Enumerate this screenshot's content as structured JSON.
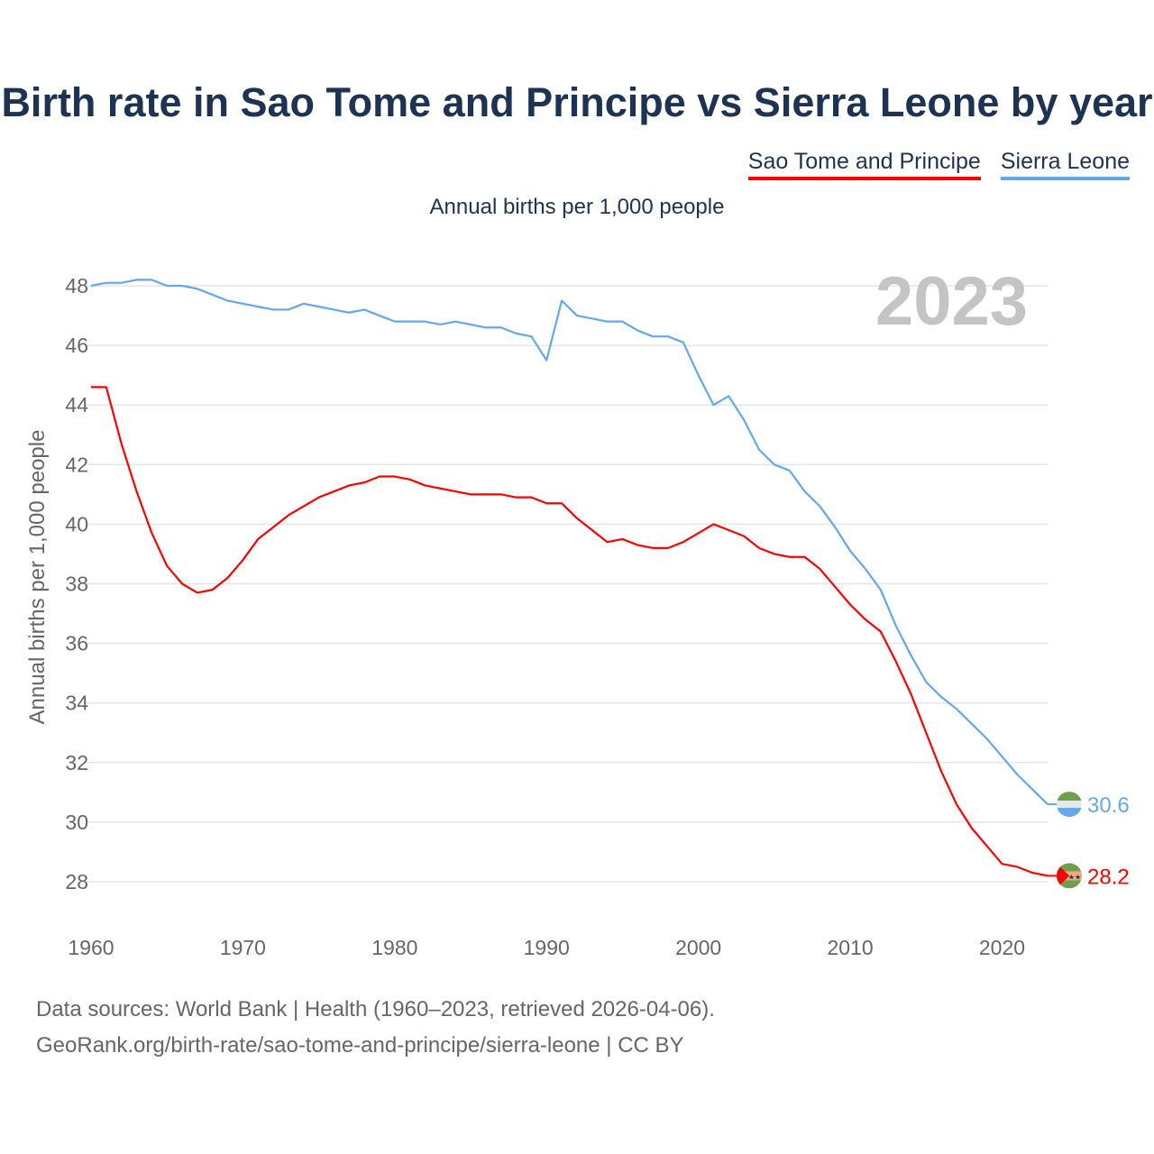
{
  "chart_data": {
    "type": "line",
    "title": "Birth rate in Sao Tome and Principe vs Sierra Leone by year",
    "subtitle": "Annual births per 1,000 people",
    "ylabel": "Annual births per 1,000 people",
    "xlabel": "",
    "year_label": "2023",
    "xlim": [
      1960,
      2023
    ],
    "ylim": [
      27,
      49
    ],
    "x_ticks": [
      1960,
      1970,
      1980,
      1990,
      2000,
      2010,
      2020
    ],
    "y_ticks": [
      28,
      30,
      32,
      34,
      36,
      38,
      40,
      42,
      44,
      46,
      48
    ],
    "grid": true,
    "legend_position": "top-right",
    "x": [
      1960,
      1961,
      1962,
      1963,
      1964,
      1965,
      1966,
      1967,
      1968,
      1969,
      1970,
      1971,
      1972,
      1973,
      1974,
      1975,
      1976,
      1977,
      1978,
      1979,
      1980,
      1981,
      1982,
      1983,
      1984,
      1985,
      1986,
      1987,
      1988,
      1989,
      1990,
      1991,
      1992,
      1993,
      1994,
      1995,
      1996,
      1997,
      1998,
      1999,
      2000,
      2001,
      2002,
      2003,
      2004,
      2005,
      2006,
      2007,
      2008,
      2009,
      2010,
      2011,
      2012,
      2013,
      2014,
      2015,
      2016,
      2017,
      2018,
      2019,
      2020,
      2021,
      2022,
      2023
    ],
    "series": [
      {
        "name": "Sao Tome and Principe",
        "color": "#ff0000",
        "end_label": "28.2",
        "values": [
          44.6,
          44.6,
          42.7,
          41.1,
          39.7,
          38.6,
          38.0,
          37.7,
          37.8,
          38.2,
          38.8,
          39.5,
          39.9,
          40.3,
          40.6,
          40.9,
          41.1,
          41.3,
          41.4,
          41.6,
          41.6,
          41.5,
          41.3,
          41.2,
          41.1,
          41.0,
          41.0,
          41.0,
          40.9,
          40.9,
          40.7,
          40.7,
          40.2,
          39.8,
          39.4,
          39.5,
          39.3,
          39.2,
          39.2,
          39.4,
          39.7,
          40.0,
          39.8,
          39.6,
          39.2,
          39.0,
          38.9,
          38.9,
          38.5,
          37.9,
          37.3,
          36.8,
          36.4,
          35.4,
          34.3,
          33.0,
          31.7,
          30.6,
          29.8,
          29.2,
          28.6,
          28.5,
          28.3,
          28.2
        ]
      },
      {
        "name": "Sierra Leone",
        "color": "#63a8eb",
        "end_label": "30.6",
        "values": [
          48.0,
          48.1,
          48.1,
          48.2,
          48.2,
          48.0,
          48.0,
          47.9,
          47.7,
          47.5,
          47.4,
          47.3,
          47.2,
          47.2,
          47.4,
          47.3,
          47.2,
          47.1,
          47.2,
          47.0,
          46.8,
          46.8,
          46.8,
          46.7,
          46.8,
          46.7,
          46.6,
          46.6,
          46.4,
          46.3,
          45.5,
          47.5,
          47.0,
          46.9,
          46.8,
          46.8,
          46.5,
          46.3,
          46.3,
          46.1,
          45.0,
          44.0,
          44.3,
          43.5,
          42.5,
          42.0,
          41.8,
          41.1,
          40.6,
          39.9,
          39.1,
          38.5,
          37.8,
          36.6,
          35.6,
          34.7,
          34.2,
          33.8,
          33.3,
          32.8,
          32.2,
          31.6,
          31.1,
          30.6
        ]
      }
    ]
  },
  "footer": {
    "line1": "Data sources: World Bank | Health (1960–2023, retrieved 2026-04-06).",
    "line2": "GeoRank.org/birth-rate/sao-tome-and-principe/sierra-leone | CC BY"
  }
}
